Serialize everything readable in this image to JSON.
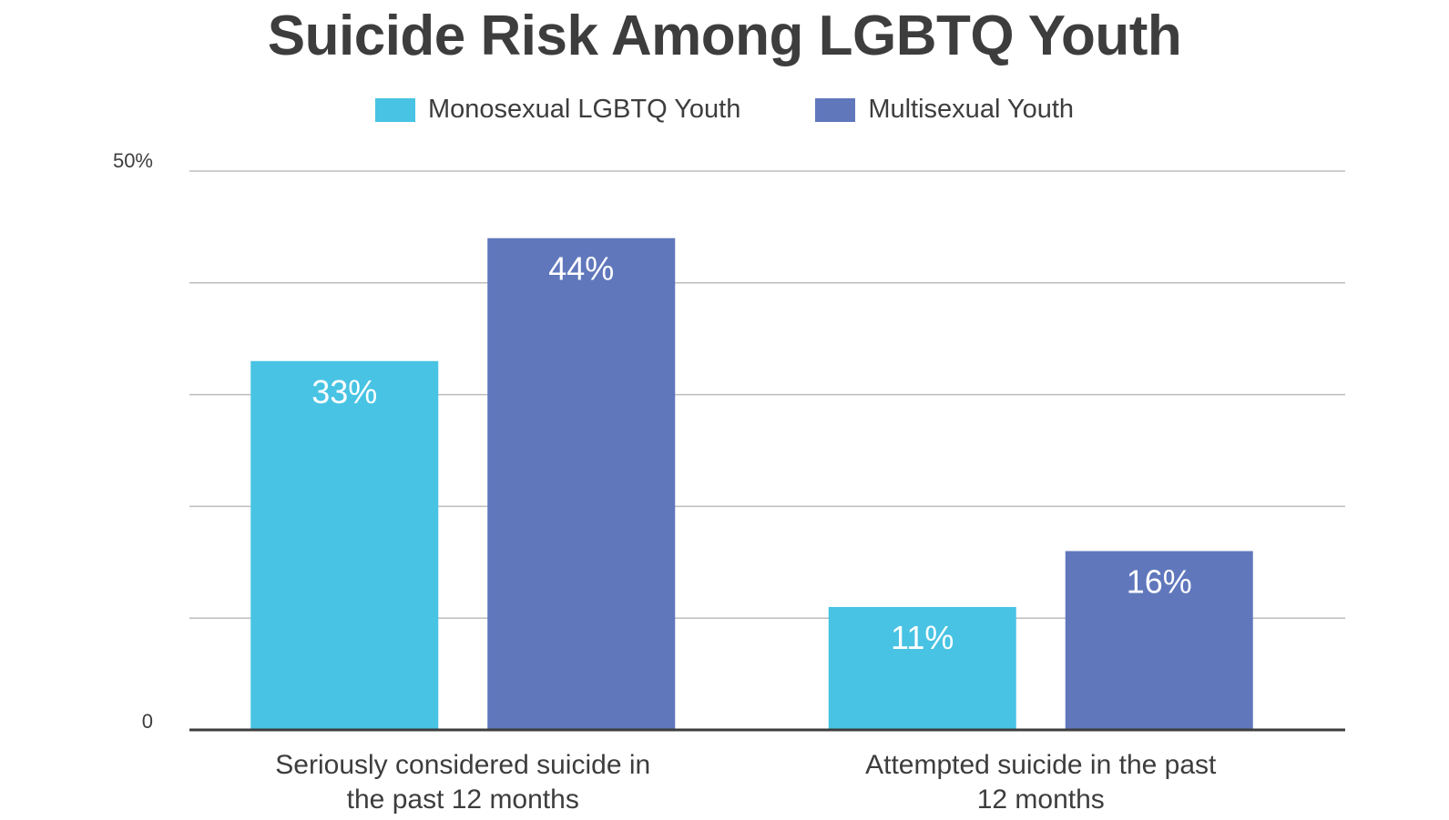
{
  "chart_data": {
    "type": "bar",
    "title": "Suicide Risk Among LGBTQ Youth",
    "categories": [
      [
        "Seriously considered suicide in",
        "the past 12 months"
      ],
      [
        "Attempted suicide in the past",
        "12 months"
      ]
    ],
    "series": [
      {
        "name": "Monosexual LGBTQ Youth",
        "values": [
          33,
          11
        ],
        "labels": [
          "33%",
          "11%"
        ],
        "color": "#48c3e3"
      },
      {
        "name": "Multisexual Youth",
        "values": [
          44,
          16
        ],
        "labels": [
          "44%",
          "16%"
        ],
        "color": "#6077bc"
      }
    ],
    "ylim": [
      0,
      50
    ],
    "yticks": [
      {
        "value": 0,
        "label": "0"
      },
      {
        "value": 50,
        "label": "50%"
      }
    ],
    "gridlines": [
      10,
      20,
      30,
      40,
      50
    ],
    "grid": true,
    "legend": "top-center",
    "colors": {
      "grid": "#bdbdbd",
      "axis": "#3d3d3d",
      "text": "#3d3d3d"
    }
  }
}
